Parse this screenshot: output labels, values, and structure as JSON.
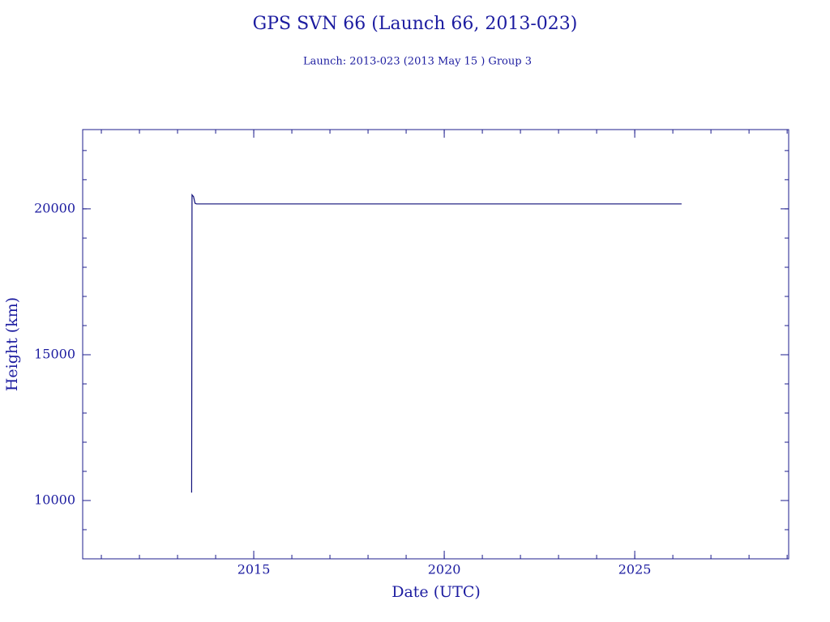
{
  "chart_data": {
    "type": "line",
    "title": "GPS SVN 66 (Launch 66, 2013-023)",
    "subtitle": "Launch: 2013-023  (2013 May 15 )  Group 3",
    "x_label": "Date (UTC)",
    "y_label": "Height (km)",
    "x": [
      2013.37,
      2013.38,
      2013.42,
      2013.46,
      2013.5,
      2026.23
    ],
    "series": [
      {
        "color": "#10107a",
        "values": [
          10270,
          20480,
          20420,
          20190,
          20170,
          20170
        ]
      }
    ],
    "xlim": [
      2010.51,
      2029.04
    ],
    "ylim": [
      8000,
      22720
    ],
    "xticks": [
      2015,
      2020,
      2025
    ],
    "yticks": [
      10000,
      15000,
      20000
    ]
  }
}
